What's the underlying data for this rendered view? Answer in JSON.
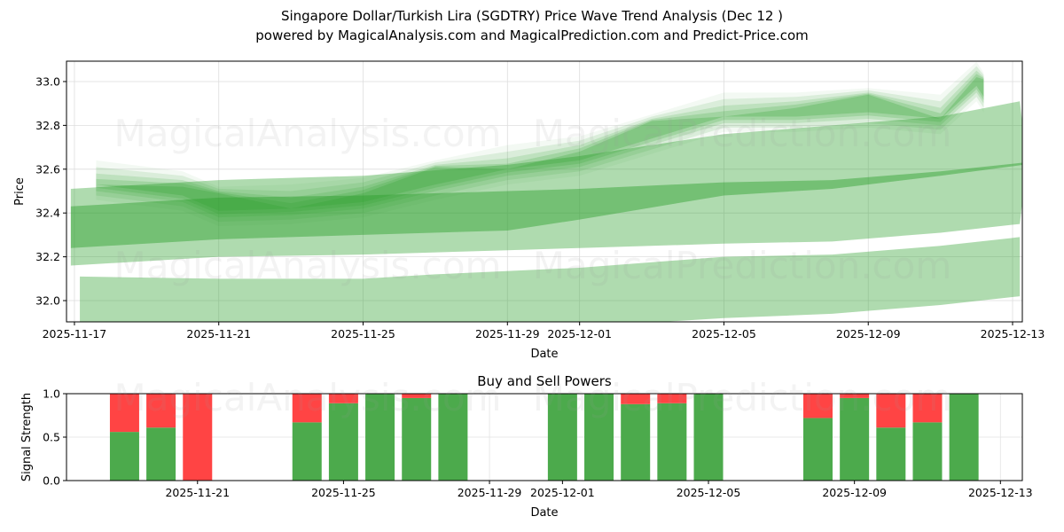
{
  "title": "Singapore Dollar/Turkish Lira (SGDTRY) Price Wave Trend Analysis (Dec 12 )",
  "subtitle": "powered by MagicalAnalysis.com and MagicalPrediction.com and Predict-Price.com",
  "watermarks": [
    "MagicalAnalysis.com",
    "MagicalPrediction.com"
  ],
  "colors": {
    "band": "#2ca02c",
    "buy": "#4caa4c",
    "sell": "#ff4444"
  },
  "chart_data": [
    {
      "type": "area",
      "title": "",
      "xlabel": "Date",
      "ylabel": "Price",
      "x_start_date": "2025-11-17",
      "xlim_days": [
        -0.22,
        26.27
      ],
      "ylim": [
        31.903,
        33.093
      ],
      "x_ticks": [
        {
          "day": 0,
          "label": "2025-11-17"
        },
        {
          "day": 4,
          "label": "2025-11-21"
        },
        {
          "day": 8,
          "label": "2025-11-25"
        },
        {
          "day": 12,
          "label": "2025-11-29"
        },
        {
          "day": 14,
          "label": "2025-12-01"
        },
        {
          "day": 18,
          "label": "2025-12-05"
        },
        {
          "day": 22,
          "label": "2025-12-09"
        },
        {
          "day": 26,
          "label": "2025-12-13"
        }
      ],
      "y_ticks": [
        "32.0",
        "32.2",
        "32.4",
        "32.6",
        "32.8",
        "33.0"
      ],
      "grid": true,
      "bands": [
        {
          "name": "forecast-band-low",
          "opacity": 0.38,
          "points": [
            [
              0.15,
              32.11,
              31.85
            ],
            [
              4,
              32.1,
              31.85
            ],
            [
              8,
              32.1,
              31.85
            ],
            [
              10,
              32.12,
              31.86
            ],
            [
              14,
              32.15,
              31.88
            ],
            [
              18,
              32.2,
              31.92
            ],
            [
              21,
              32.21,
              31.94
            ],
            [
              24,
              32.25,
              31.98
            ],
            [
              26.2,
              32.29,
              32.02
            ]
          ]
        },
        {
          "name": "forecast-band-wide",
          "opacity": 0.38,
          "points": [
            [
              -0.1,
              32.51,
              32.16
            ],
            [
              4,
              32.55,
              32.2
            ],
            [
              8,
              32.57,
              32.21
            ],
            [
              12,
              32.62,
              32.23
            ],
            [
              14,
              32.66,
              32.24
            ],
            [
              18,
              32.76,
              32.26
            ],
            [
              21,
              32.8,
              32.27
            ],
            [
              24,
              32.84,
              32.31
            ],
            [
              26.2,
              32.91,
              32.35
            ],
            [
              26.4,
              32.63,
              32.63
            ]
          ]
        },
        {
          "name": "forecast-band-mid",
          "opacity": 0.45,
          "points": [
            [
              -0.1,
              32.43,
              32.24
            ],
            [
              4,
              32.47,
              32.28
            ],
            [
              8,
              32.48,
              32.3
            ],
            [
              12,
              32.5,
              32.32
            ],
            [
              14,
              32.51,
              32.37
            ],
            [
              18,
              32.54,
              32.48
            ],
            [
              21,
              32.55,
              32.51
            ],
            [
              24,
              32.59,
              32.57
            ],
            [
              26.3,
              32.63,
              32.62
            ]
          ]
        }
      ],
      "price_path": {
        "days": [
          0.6,
          3,
          4,
          6,
          8,
          10,
          12,
          14,
          16,
          18,
          20,
          22,
          24,
          25,
          25.2
        ],
        "values": [
          32.55,
          32.5,
          32.43,
          32.44,
          32.47,
          32.55,
          32.62,
          32.66,
          32.76,
          32.86,
          32.86,
          32.88,
          32.85,
          33.0,
          32.95
        ]
      }
    },
    {
      "type": "bar",
      "title": "Buy and Sell Powers",
      "xlabel": "Date",
      "ylabel": "Signal Strength",
      "x_start_date": "2025-11-17",
      "xlim_days": [
        0.41,
        26.6
      ],
      "ylim": [
        0,
        1
      ],
      "y_ticks": [
        "0.0",
        "0.5",
        "1.0"
      ],
      "x_ticks": [
        {
          "day": 4,
          "label": "2025-11-21"
        },
        {
          "day": 8,
          "label": "2025-11-25"
        },
        {
          "day": 12,
          "label": "2025-11-29"
        },
        {
          "day": 14,
          "label": "2025-12-01"
        },
        {
          "day": 18,
          "label": "2025-12-05"
        },
        {
          "day": 22,
          "label": "2025-12-09"
        },
        {
          "day": 26,
          "label": "2025-12-13"
        }
      ],
      "categories": [
        "2025-11-19",
        "2025-11-20",
        "2025-11-21",
        "2025-11-24",
        "2025-11-25",
        "2025-11-26",
        "2025-11-27",
        "2025-11-28",
        "2025-12-01",
        "2025-12-02",
        "2025-12-03",
        "2025-12-04",
        "2025-12-05",
        "2025-12-08",
        "2025-12-09",
        "2025-12-10",
        "2025-12-11",
        "2025-12-12"
      ],
      "days": [
        2,
        3,
        4,
        7,
        8,
        9,
        10,
        11,
        14,
        15,
        16,
        17,
        18,
        21,
        22,
        23,
        24,
        25
      ],
      "series": [
        {
          "name": "Buy",
          "values": [
            0.56,
            0.61,
            0.0,
            0.67,
            0.89,
            1.0,
            0.95,
            1.0,
            1.0,
            1.0,
            0.88,
            0.89,
            1.0,
            0.72,
            0.95,
            0.61,
            0.67,
            1.0
          ]
        },
        {
          "name": "Sell",
          "values": [
            0.44,
            0.39,
            1.0,
            0.33,
            0.11,
            0.0,
            0.05,
            0.0,
            0.0,
            0.0,
            0.12,
            0.11,
            0.0,
            0.28,
            0.05,
            0.39,
            0.33,
            0.0
          ]
        }
      ]
    }
  ]
}
